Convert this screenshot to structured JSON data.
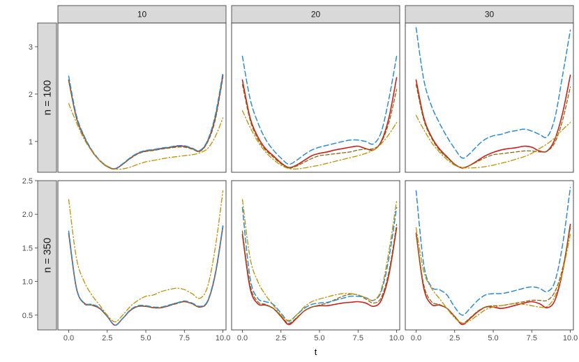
{
  "chart_data": {
    "type": "line",
    "xlabel": "t",
    "ylabel": "",
    "xlim": [
      -0.7,
      10.2
    ],
    "x_ticks": [
      0,
      2.5,
      5,
      7.5,
      10
    ],
    "x_tick_labels": [
      "0.0",
      "2.5",
      "5.0",
      "7.5",
      "10.0"
    ],
    "column_facets": [
      "10",
      "20",
      "30"
    ],
    "row_facets": [
      "n = 100",
      "n = 350"
    ],
    "rows": [
      {
        "label": "n = 100",
        "ylim": [
          0.35,
          3.5
        ],
        "y_ticks": [
          1,
          2,
          3
        ],
        "y_tick_labels": [
          "1",
          "2",
          "3"
        ]
      },
      {
        "label": "n = 350",
        "ylim": [
          0.28,
          2.5
        ],
        "y_ticks": [
          0.5,
          1.0,
          1.5,
          2.0,
          2.5
        ],
        "y_tick_labels": [
          "0.5",
          "1.0",
          "1.5",
          "2.0",
          "2.5"
        ]
      }
    ],
    "series_styles": [
      {
        "color": "#cc1f1a",
        "dash": "",
        "width": 1.6
      },
      {
        "color": "#8b6914",
        "dash": "5,3",
        "width": 1.3
      },
      {
        "color": "#2a8bd6",
        "dash": "7,4",
        "width": 1.5
      },
      {
        "color": "#c09000",
        "dash": "7,3,1.5,3",
        "width": 1.3
      }
    ],
    "x": [
      0,
      0.5,
      1,
      1.5,
      2,
      2.5,
      3,
      3.5,
      4,
      4.5,
      5,
      5.5,
      6,
      6.5,
      7,
      7.5,
      8,
      8.5,
      9,
      9.5,
      10
    ],
    "panels": [
      {
        "row": 0,
        "col": 0,
        "series": [
          {
            "values": [
              2.3,
              1.5,
              1.1,
              0.8,
              0.6,
              0.47,
              0.42,
              0.52,
              0.65,
              0.75,
              0.8,
              0.82,
              0.85,
              0.87,
              0.9,
              0.9,
              0.85,
              0.8,
              1.0,
              1.5,
              2.4
            ]
          },
          {
            "values": [
              2.28,
              1.5,
              1.1,
              0.8,
              0.6,
              0.47,
              0.42,
              0.52,
              0.64,
              0.74,
              0.79,
              0.81,
              0.84,
              0.86,
              0.88,
              0.88,
              0.84,
              0.79,
              0.98,
              1.45,
              2.35
            ]
          },
          {
            "values": [
              2.38,
              1.55,
              1.12,
              0.82,
              0.61,
              0.48,
              0.43,
              0.53,
              0.66,
              0.76,
              0.81,
              0.83,
              0.86,
              0.88,
              0.91,
              0.91,
              0.86,
              0.81,
              1.02,
              1.55,
              2.45
            ]
          },
          {
            "values": [
              1.8,
              1.4,
              1.05,
              0.8,
              0.6,
              0.48,
              0.42,
              0.42,
              0.46,
              0.52,
              0.57,
              0.6,
              0.63,
              0.66,
              0.68,
              0.7,
              0.72,
              0.76,
              0.85,
              1.1,
              1.5
            ]
          }
        ]
      },
      {
        "row": 0,
        "col": 1,
        "series": [
          {
            "values": [
              2.3,
              1.5,
              1.1,
              0.85,
              0.7,
              0.55,
              0.45,
              0.5,
              0.6,
              0.7,
              0.75,
              0.78,
              0.82,
              0.85,
              0.88,
              0.9,
              0.85,
              0.82,
              1.0,
              1.5,
              2.35
            ]
          },
          {
            "values": [
              2.2,
              1.45,
              1.05,
              0.82,
              0.67,
              0.53,
              0.44,
              0.48,
              0.56,
              0.64,
              0.7,
              0.72,
              0.74,
              0.76,
              0.78,
              0.82,
              0.84,
              0.85,
              0.98,
              1.4,
              2.1
            ]
          },
          {
            "values": [
              2.8,
              1.9,
              1.4,
              1.05,
              0.82,
              0.65,
              0.52,
              0.6,
              0.72,
              0.82,
              0.88,
              0.92,
              0.96,
              1.0,
              1.03,
              1.03,
              1.0,
              0.95,
              1.2,
              1.9,
              2.8
            ]
          },
          {
            "values": [
              1.65,
              1.3,
              1.0,
              0.78,
              0.62,
              0.5,
              0.43,
              0.42,
              0.44,
              0.47,
              0.5,
              0.54,
              0.58,
              0.62,
              0.66,
              0.7,
              0.75,
              0.82,
              0.95,
              1.15,
              1.4
            ]
          }
        ]
      },
      {
        "row": 0,
        "col": 2,
        "series": [
          {
            "values": [
              2.3,
              1.5,
              1.1,
              0.85,
              0.68,
              0.52,
              0.44,
              0.5,
              0.6,
              0.7,
              0.77,
              0.82,
              0.85,
              0.87,
              0.9,
              0.88,
              0.8,
              0.8,
              1.05,
              1.6,
              2.4
            ]
          },
          {
            "values": [
              2.2,
              1.45,
              1.07,
              0.82,
              0.66,
              0.52,
              0.45,
              0.5,
              0.58,
              0.66,
              0.72,
              0.74,
              0.76,
              0.78,
              0.8,
              0.8,
              0.78,
              0.8,
              0.98,
              1.45,
              2.15
            ]
          },
          {
            "values": [
              3.4,
              2.3,
              1.75,
              1.4,
              1.1,
              0.85,
              0.65,
              0.75,
              0.92,
              1.05,
              1.12,
              1.15,
              1.2,
              1.23,
              1.26,
              1.22,
              1.15,
              1.1,
              1.5,
              2.4,
              3.35
            ]
          },
          {
            "values": [
              1.55,
              1.25,
              0.98,
              0.78,
              0.62,
              0.5,
              0.45,
              0.44,
              0.45,
              0.47,
              0.5,
              0.54,
              0.58,
              0.63,
              0.68,
              0.75,
              0.85,
              0.95,
              1.08,
              1.25,
              1.4
            ]
          }
        ]
      },
      {
        "row": 1,
        "col": 0,
        "series": [
          {
            "values": [
              1.72,
              0.9,
              0.68,
              0.65,
              0.6,
              0.48,
              0.35,
              0.45,
              0.57,
              0.63,
              0.63,
              0.61,
              0.61,
              0.64,
              0.68,
              0.7,
              0.67,
              0.62,
              0.7,
              1.1,
              1.82
            ]
          },
          {
            "values": [
              1.7,
              0.9,
              0.67,
              0.65,
              0.6,
              0.48,
              0.35,
              0.45,
              0.57,
              0.63,
              0.63,
              0.61,
              0.61,
              0.64,
              0.67,
              0.7,
              0.67,
              0.62,
              0.7,
              1.1,
              1.8
            ]
          },
          {
            "values": [
              1.75,
              0.91,
              0.68,
              0.66,
              0.61,
              0.48,
              0.35,
              0.45,
              0.58,
              0.64,
              0.64,
              0.62,
              0.62,
              0.65,
              0.68,
              0.71,
              0.68,
              0.63,
              0.71,
              1.12,
              1.83
            ]
          },
          {
            "values": [
              2.22,
              1.35,
              1.0,
              0.8,
              0.65,
              0.5,
              0.4,
              0.5,
              0.63,
              0.72,
              0.78,
              0.8,
              0.85,
              0.88,
              0.9,
              0.88,
              0.82,
              0.75,
              0.92,
              1.5,
              2.35
            ]
          }
        ]
      },
      {
        "row": 1,
        "col": 1,
        "series": [
          {
            "values": [
              1.7,
              0.9,
              0.67,
              0.65,
              0.6,
              0.48,
              0.36,
              0.45,
              0.56,
              0.62,
              0.64,
              0.64,
              0.66,
              0.68,
              0.69,
              0.7,
              0.68,
              0.63,
              0.72,
              1.1,
              1.8
            ]
          },
          {
            "values": [
              1.75,
              0.95,
              0.7,
              0.66,
              0.6,
              0.49,
              0.38,
              0.46,
              0.56,
              0.62,
              0.65,
              0.68,
              0.73,
              0.78,
              0.81,
              0.8,
              0.74,
              0.68,
              0.76,
              1.15,
              1.85
            ]
          },
          {
            "values": [
              2.1,
              1.05,
              0.75,
              0.7,
              0.66,
              0.53,
              0.41,
              0.5,
              0.6,
              0.66,
              0.68,
              0.69,
              0.72,
              0.75,
              0.78,
              0.78,
              0.76,
              0.72,
              0.85,
              1.35,
              2.1
            ]
          },
          {
            "values": [
              2.22,
              1.35,
              1.0,
              0.8,
              0.65,
              0.5,
              0.42,
              0.5,
              0.62,
              0.7,
              0.74,
              0.77,
              0.8,
              0.82,
              0.82,
              0.8,
              0.76,
              0.72,
              0.88,
              1.45,
              2.2
            ]
          }
        ]
      },
      {
        "row": 1,
        "col": 2,
        "series": [
          {
            "values": [
              1.72,
              0.9,
              0.66,
              0.65,
              0.6,
              0.48,
              0.36,
              0.45,
              0.55,
              0.62,
              0.62,
              0.6,
              0.62,
              0.65,
              0.68,
              0.7,
              0.67,
              0.61,
              0.72,
              1.15,
              1.85
            ]
          },
          {
            "values": [
              1.7,
              0.95,
              0.7,
              0.66,
              0.6,
              0.48,
              0.38,
              0.46,
              0.56,
              0.62,
              0.64,
              0.64,
              0.66,
              0.68,
              0.7,
              0.72,
              0.72,
              0.72,
              0.85,
              1.2,
              1.8
            ]
          },
          {
            "values": [
              2.35,
              1.25,
              0.92,
              0.88,
              0.8,
              0.62,
              0.5,
              0.6,
              0.72,
              0.8,
              0.82,
              0.82,
              0.84,
              0.87,
              0.9,
              0.92,
              0.9,
              0.85,
              1.0,
              1.55,
              2.4
            ]
          },
          {
            "values": [
              1.8,
              1.15,
              0.9,
              0.75,
              0.6,
              0.46,
              0.38,
              0.42,
              0.5,
              0.58,
              0.62,
              0.64,
              0.66,
              0.67,
              0.66,
              0.64,
              0.62,
              0.63,
              0.78,
              1.15,
              1.7
            ]
          }
        ]
      }
    ]
  }
}
